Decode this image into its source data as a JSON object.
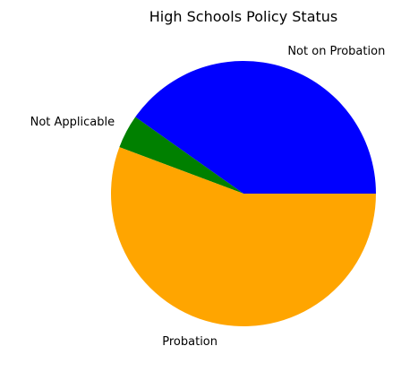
{
  "chart_data": {
    "type": "pie",
    "title": "High Schools Policy Status",
    "categories": [
      "Not on Probation",
      "Not Applicable",
      "Probation"
    ],
    "values": [
      40.2,
      4.1,
      55.7
    ],
    "colors": [
      "#0000ff",
      "#008000",
      "#ffa500"
    ],
    "start_angle_deg": 0,
    "direction": "counterclockwise",
    "legend": "none"
  }
}
